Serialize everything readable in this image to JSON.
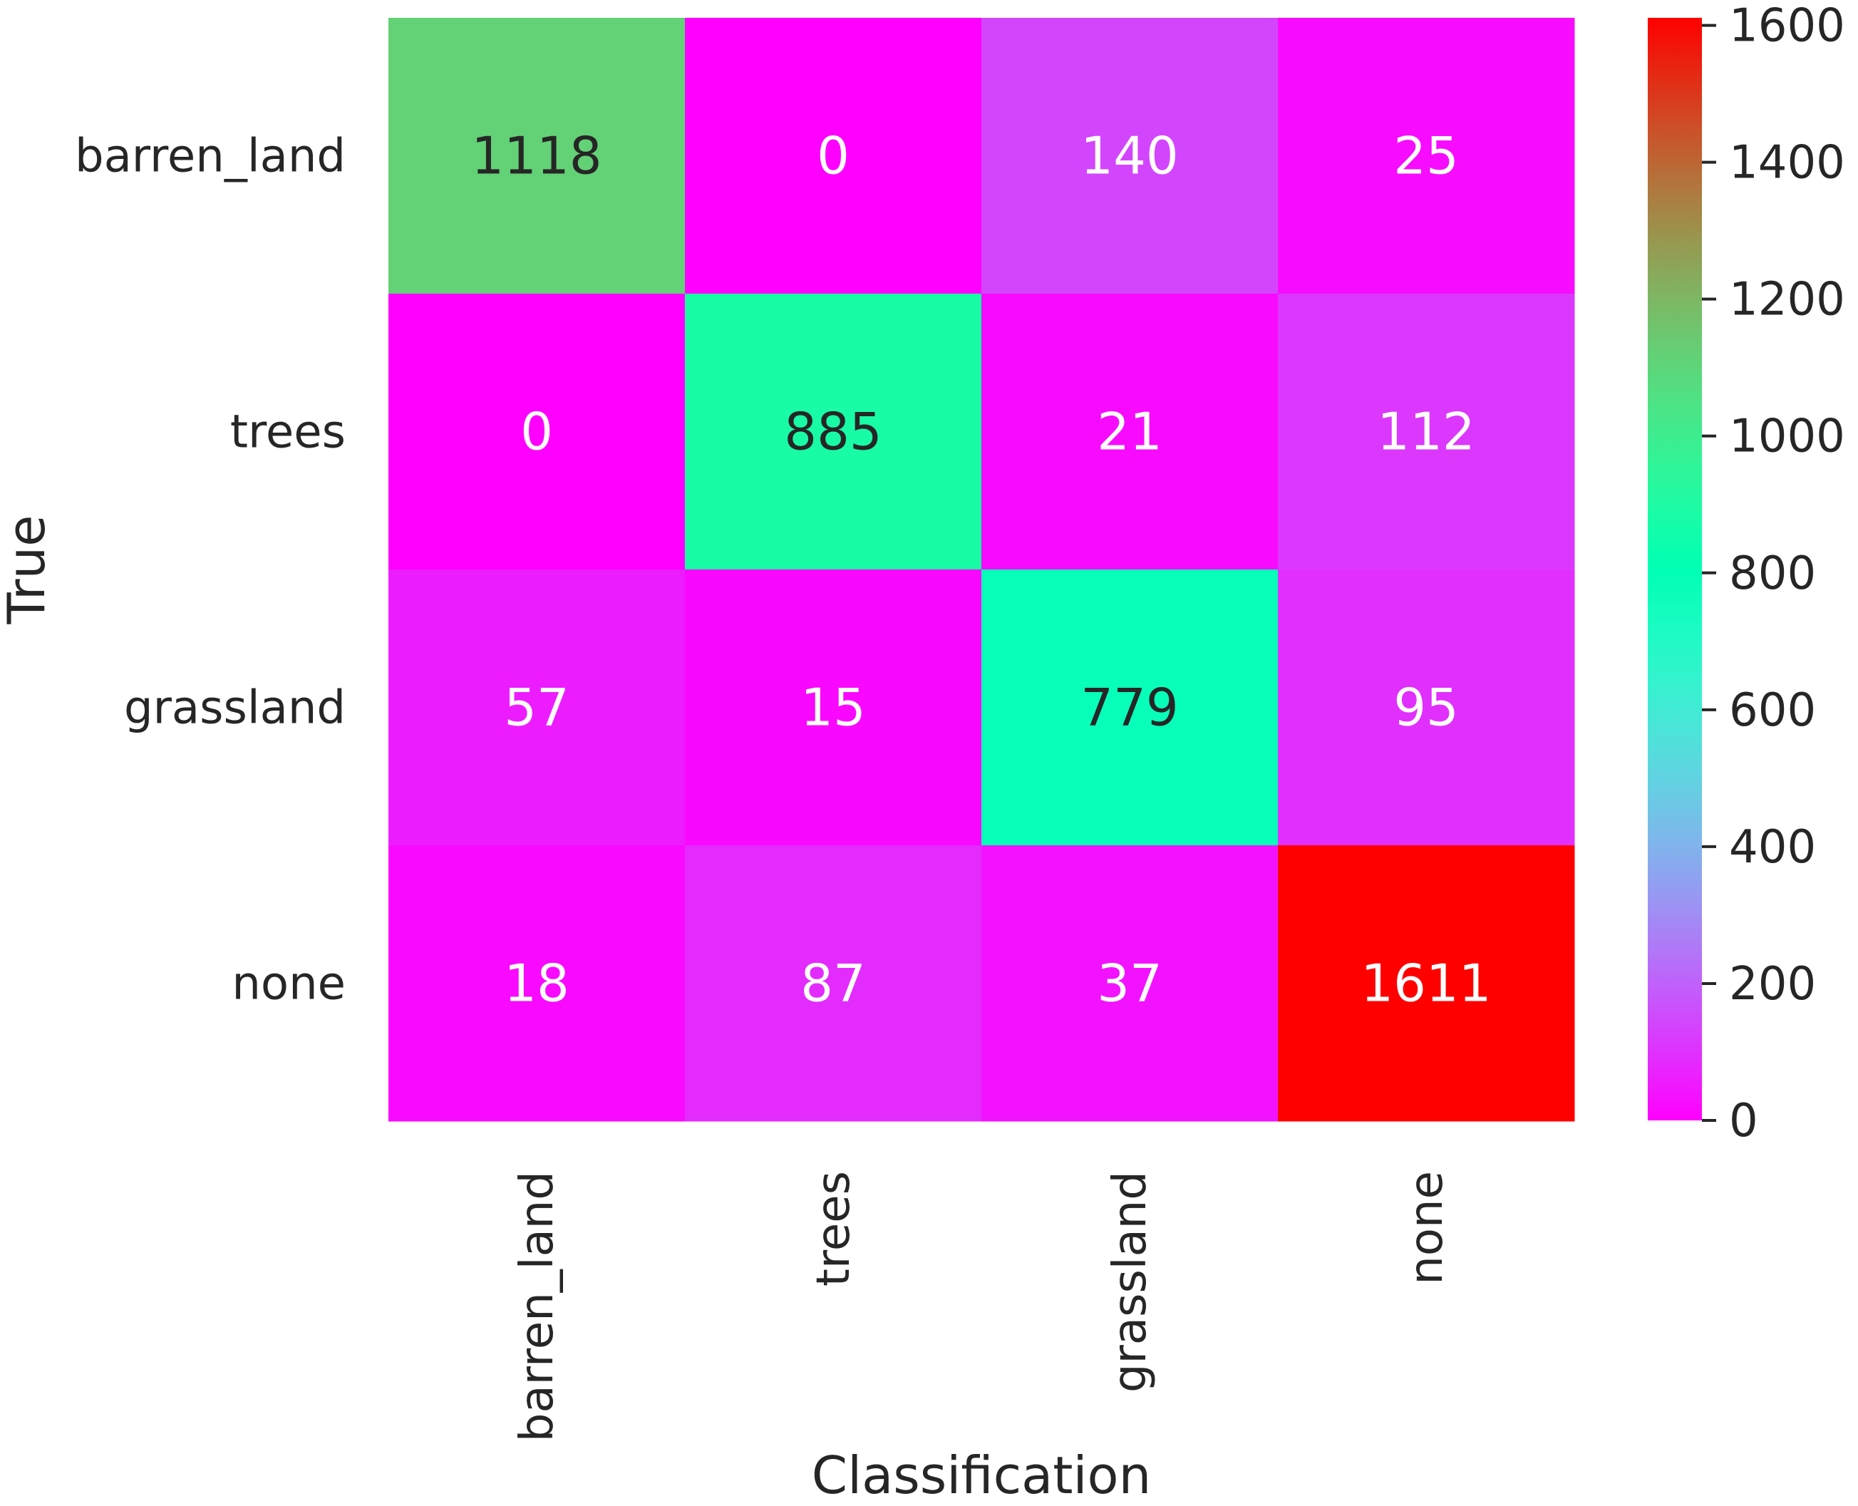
{
  "chart_data": {
    "type": "heatmap",
    "title": "",
    "xlabel": "Classification",
    "ylabel": "True",
    "x_categories": [
      "barren_land",
      "trees",
      "grassland",
      "none"
    ],
    "y_categories": [
      "barren_land",
      "trees",
      "grassland",
      "none"
    ],
    "values": [
      [
        1118,
        0,
        140,
        25
      ],
      [
        0,
        885,
        21,
        112
      ],
      [
        57,
        15,
        779,
        95
      ],
      [
        18,
        87,
        37,
        1611
      ]
    ],
    "colormap": "rainbow",
    "colorbar": {
      "range": [
        0,
        1611
      ],
      "ticks": [
        0,
        200,
        400,
        600,
        800,
        1000,
        1200,
        1400,
        1600
      ],
      "tick_labels": [
        "0",
        "200",
        "400",
        "600",
        "800",
        "1000",
        "1200",
        "1400",
        "1600"
      ]
    },
    "annotation_colors": {
      "light": "#ffffff",
      "dark": "#262626"
    }
  }
}
